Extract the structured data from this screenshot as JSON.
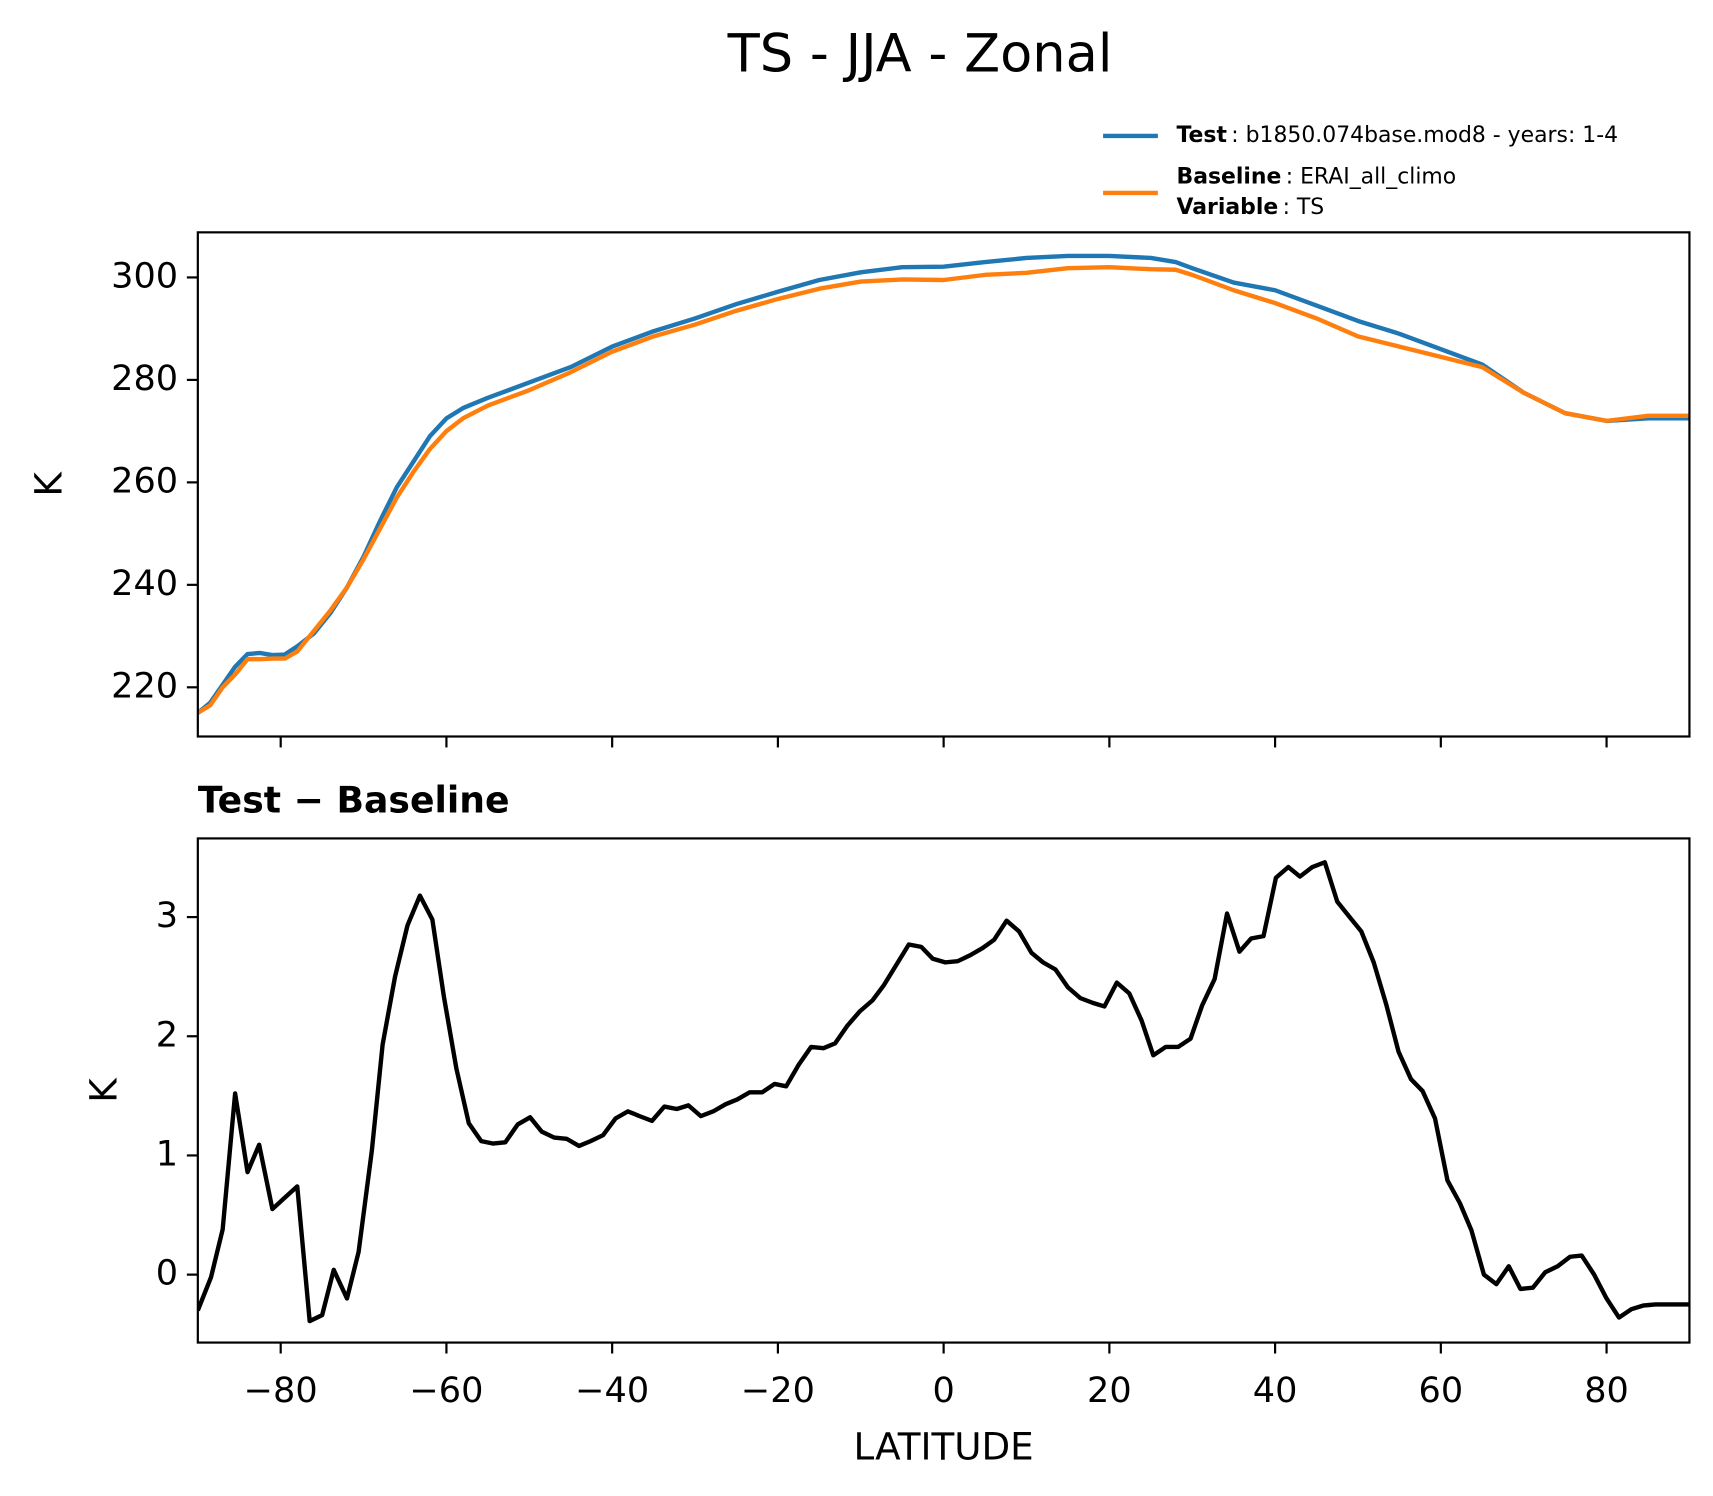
{
  "title": "TS - JJA - Zonal",
  "chart_data": [
    {
      "type": "line",
      "ylabel": "K",
      "x": [
        -90,
        -88.5,
        -87,
        -85.5,
        -84,
        -82.5,
        -81,
        -79.5,
        -78,
        -76,
        -74,
        -72,
        -70,
        -68,
        -66,
        -64,
        -62,
        -60,
        -58,
        -55,
        -50,
        -45,
        -40,
        -35,
        -30,
        -25,
        -20,
        -15,
        -10,
        -5,
        0,
        5,
        10,
        15,
        20,
        25,
        28,
        30,
        35,
        40,
        45,
        50,
        55,
        60,
        65,
        70,
        75,
        80,
        85,
        90
      ],
      "series": [
        {
          "name": "Test",
          "description": ": b1850.074base.mod8 - years: 1-4",
          "color": "#1f77b4",
          "values": [
            215,
            217,
            220.5,
            224,
            226.5,
            226.7,
            226.3,
            226.4,
            228,
            230.5,
            234.5,
            239.5,
            245.5,
            252.5,
            259,
            264,
            269,
            272.5,
            274.5,
            276.5,
            279.5,
            282.5,
            286.5,
            289.5,
            292,
            294.8,
            297.2,
            299.5,
            301,
            302,
            302.1,
            303,
            303.8,
            304.2,
            304.2,
            303.8,
            303,
            301.8,
            299,
            297.5,
            294.5,
            291.5,
            289,
            286,
            283,
            277.5,
            273.5,
            272,
            272.5,
            272.5
          ]
        },
        {
          "name": "Baseline",
          "description": ": ERAI_all_climo",
          "color": "#ff7f0e",
          "values": [
            215,
            216.5,
            220,
            222.5,
            225.5,
            225.5,
            225.6,
            225.6,
            227,
            231,
            235,
            239.5,
            245,
            251,
            257,
            262,
            266.5,
            270,
            272.5,
            275,
            278,
            281.5,
            285.5,
            288.5,
            290.8,
            293.5,
            295.8,
            297.8,
            299.2,
            299.6,
            299.5,
            300.5,
            300.9,
            301.8,
            302,
            301.6,
            301.5,
            300.5,
            297.5,
            295,
            292,
            288.5,
            286.5,
            284.5,
            282.5,
            277.5,
            273.5,
            272,
            273,
            273
          ]
        }
      ],
      "legend_note": {
        "name": "Variable",
        "description": ": TS"
      },
      "xlim": [
        -90,
        90
      ],
      "xticks": [
        -80,
        -60,
        -40,
        -20,
        0,
        20,
        40,
        60,
        80
      ],
      "xticklabels": false,
      "ylim": [
        210.4,
        308.8
      ],
      "yticks": [
        220,
        240,
        260,
        280,
        300
      ],
      "grid": false
    },
    {
      "type": "line",
      "title": "Test − Baseline",
      "xlabel": "LATITUDE",
      "ylabel": "K",
      "x": [
        -90,
        -88.4,
        -87,
        -85.5,
        -84,
        -82.6,
        -81,
        -79.6,
        -78,
        -76.5,
        -75,
        -73.6,
        -72,
        -70.6,
        -69,
        -67.7,
        -66.2,
        -64.7,
        -63.2,
        -61.7,
        -60.3,
        -58.8,
        -57.3,
        -55.8,
        -54.4,
        -52.9,
        -51.4,
        -49.9,
        -48.5,
        -47,
        -45.5,
        -44,
        -42.6,
        -41.1,
        -39.6,
        -38.1,
        -36.7,
        -35.2,
        -33.7,
        -32.2,
        -30.8,
        -29.3,
        -27.8,
        -26.3,
        -24.9,
        -23.4,
        -21.9,
        -20.4,
        -19,
        -17.5,
        -16,
        -14.5,
        -13.1,
        -11.6,
        -10.1,
        -8.6,
        -7.2,
        -5.7,
        -4.2,
        -2.7,
        -1.3,
        0.2,
        1.7,
        3.2,
        4.7,
        6.1,
        7.6,
        9.1,
        10.6,
        12,
        13.5,
        15,
        16.5,
        18,
        19.4,
        20.9,
        22.4,
        23.9,
        25.3,
        26.8,
        28.3,
        29.8,
        31.2,
        32.7,
        34.2,
        35.7,
        37.1,
        38.6,
        40.1,
        41.6,
        43,
        44.5,
        46,
        47.5,
        49,
        50.4,
        51.9,
        53.4,
        54.9,
        56.4,
        57.8,
        59.3,
        60.8,
        62.3,
        63.7,
        65.2,
        66.7,
        68.2,
        69.6,
        71.1,
        72.6,
        74.1,
        75.6,
        77,
        78.5,
        80,
        81.5,
        83,
        84.4,
        85.9,
        87.4,
        88.9,
        90
      ],
      "series": [
        {
          "color": "#000000",
          "values": [
            -0.3,
            -0.02,
            0.38,
            1.52,
            0.86,
            1.09,
            0.55,
            0.64,
            0.74,
            -0.39,
            -0.34,
            0.04,
            -0.2,
            0.19,
            1.04,
            1.93,
            2.5,
            2.93,
            3.18,
            2.98,
            2.33,
            1.73,
            1.27,
            1.12,
            1.1,
            1.11,
            1.26,
            1.32,
            1.2,
            1.15,
            1.14,
            1.08,
            1.12,
            1.17,
            1.31,
            1.37,
            1.33,
            1.29,
            1.41,
            1.39,
            1.42,
            1.33,
            1.37,
            1.43,
            1.47,
            1.53,
            1.53,
            1.6,
            1.58,
            1.76,
            1.91,
            1.9,
            1.94,
            2.09,
            2.21,
            2.3,
            2.43,
            2.6,
            2.77,
            2.75,
            2.65,
            2.62,
            2.63,
            2.68,
            2.74,
            2.81,
            2.97,
            2.88,
            2.7,
            2.62,
            2.56,
            2.41,
            2.32,
            2.28,
            2.25,
            2.45,
            2.36,
            2.13,
            1.84,
            1.91,
            1.91,
            1.98,
            2.26,
            2.48,
            3.03,
            2.71,
            2.82,
            2.84,
            3.33,
            3.42,
            3.34,
            3.42,
            3.46,
            3.13,
            3.0,
            2.88,
            2.62,
            2.27,
            1.87,
            1.64,
            1.54,
            1.31,
            0.79,
            0.6,
            0.37,
            0.0,
            -0.08,
            0.07,
            -0.12,
            -0.11,
            0.02,
            0.07,
            0.15,
            0.16,
            0.0,
            -0.2,
            -0.36,
            -0.29,
            -0.26,
            -0.25,
            -0.25,
            -0.25,
            -0.25
          ]
        }
      ],
      "xlim": [
        -90,
        90
      ],
      "xticks": [
        {
          "value": -80,
          "label": "−80"
        },
        {
          "value": -60,
          "label": "−60"
        },
        {
          "value": -40,
          "label": "−40"
        },
        {
          "value": -20,
          "label": "−20"
        },
        0,
        20,
        40,
        60,
        80
      ],
      "ylim": [
        -0.57,
        3.66
      ],
      "yticks": [
        0,
        1,
        2,
        3
      ],
      "grid": false
    }
  ]
}
